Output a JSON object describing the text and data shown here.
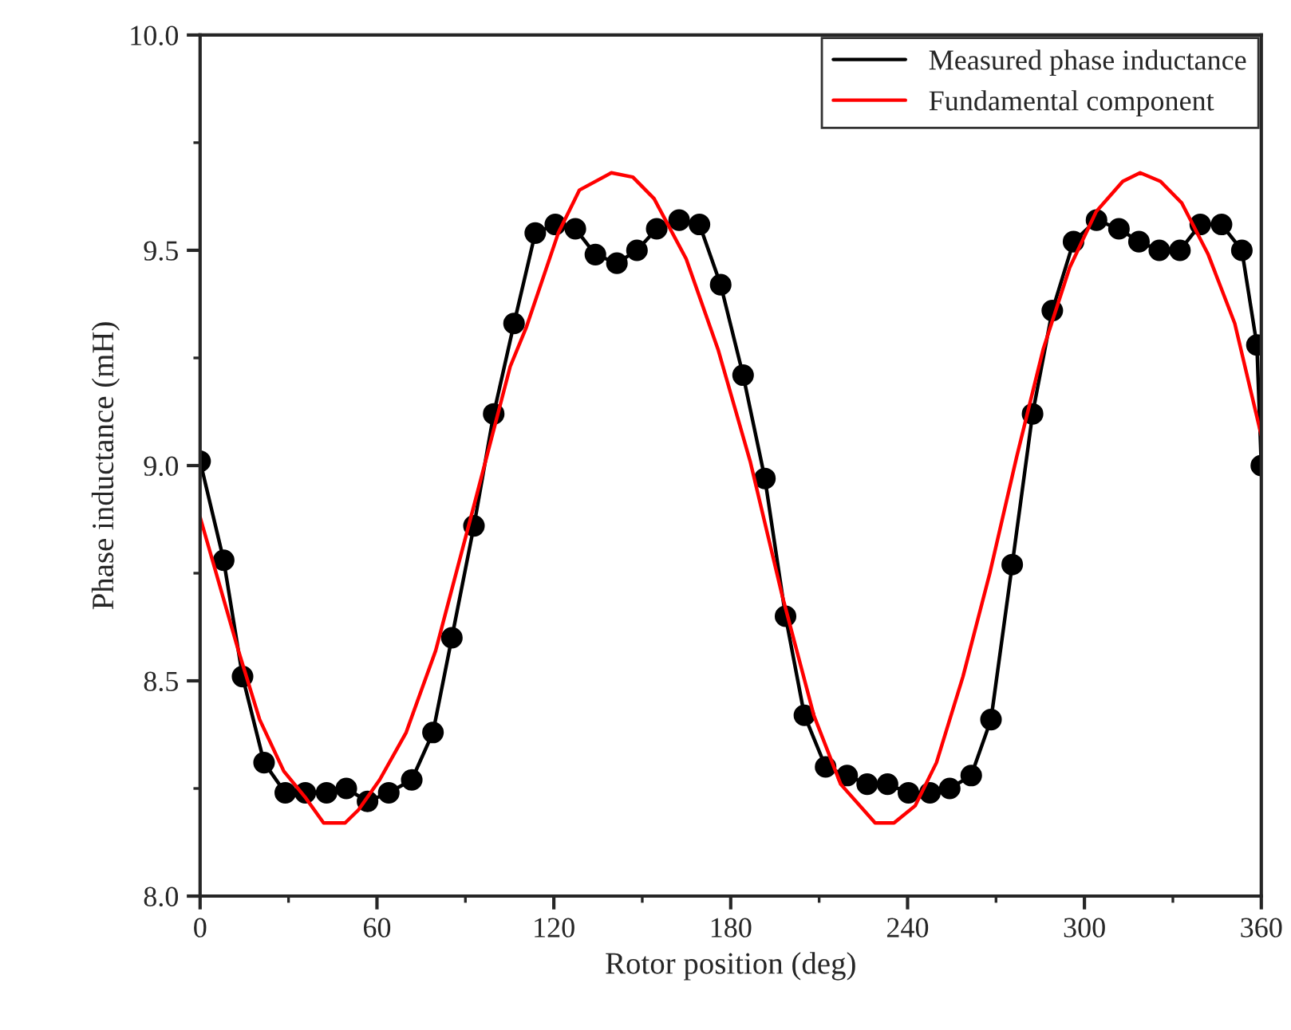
{
  "chart_data": {
    "type": "line",
    "xlabel": "Rotor position (deg)",
    "ylabel": "Phase inductance (mH)",
    "xlim": [
      0,
      360
    ],
    "ylim": [
      8.0,
      10.0
    ],
    "xticks": [
      0,
      60,
      120,
      180,
      240,
      300,
      360
    ],
    "yticks": [
      {
        "value": 8.0,
        "label": "8.0"
      },
      {
        "value": 8.5,
        "label": "8.5"
      },
      {
        "value": 9.0,
        "label": "9.0"
      },
      {
        "value": 9.5,
        "label": "9.5"
      },
      {
        "value": 10.0,
        "label": "10.0"
      }
    ],
    "grid": false,
    "legend": "top right",
    "line_style": "solid",
    "series": [
      {
        "name": "Measured phase inductance",
        "color": "#000000",
        "marker": "circle",
        "x": [
          0,
          8,
          14.4,
          21.7,
          28.9,
          35.7,
          42.9,
          49.6,
          56.8,
          64,
          71.8,
          79,
          85.4,
          92.9,
          99.6,
          106.5,
          113.7,
          120.5,
          127.3,
          134.1,
          141.4,
          148.2,
          154.9,
          162.5,
          169.4,
          176.6,
          184.2,
          191.6,
          198.6,
          205,
          212.2,
          219.5,
          226.3,
          233.2,
          240.3,
          247.6,
          254.3,
          261.6,
          268.3,
          275.5,
          282.4,
          289.1,
          296.3,
          304.1,
          311.7,
          318.5,
          325.4,
          332.4,
          339.3,
          346.5,
          353.4,
          358.5,
          360
        ],
        "values": [
          9.01,
          8.78,
          8.51,
          8.31,
          8.24,
          8.24,
          8.24,
          8.25,
          8.22,
          8.24,
          8.27,
          8.38,
          8.6,
          8.86,
          9.12,
          9.33,
          9.54,
          9.56,
          9.55,
          9.49,
          9.47,
          9.5,
          9.55,
          9.57,
          9.56,
          9.42,
          9.21,
          8.97,
          8.65,
          8.42,
          8.3,
          8.28,
          8.26,
          8.26,
          8.24,
          8.24,
          8.25,
          8.28,
          8.41,
          8.77,
          9.12,
          9.36,
          9.52,
          9.57,
          9.55,
          9.52,
          9.5,
          9.5,
          9.56,
          9.56,
          9.5,
          9.28,
          9.0
        ]
      },
      {
        "name": "Fundamental component",
        "color": "#ff0000",
        "marker": "none",
        "x": [
          0,
          13,
          20.2,
          28.4,
          35.6,
          41.9,
          49.2,
          53.7,
          60.9,
          69.9,
          79.9,
          93.4,
          105.2,
          110.6,
          121.5,
          128.7,
          139.5,
          146.8,
          154,
          164.9,
          175.7,
          186.6,
          197.4,
          208.2,
          217.3,
          229,
          235.4,
          242.6,
          249.8,
          258.8,
          267.9,
          277,
          286,
          295,
          304,
          313,
          318.9,
          325.8,
          333,
          342,
          351,
          360
        ],
        "values": [
          8.88,
          8.57,
          8.41,
          8.29,
          8.23,
          8.17,
          8.17,
          8.2,
          8.27,
          8.38,
          8.57,
          8.92,
          9.23,
          9.32,
          9.54,
          9.64,
          9.68,
          9.67,
          9.62,
          9.48,
          9.27,
          9.01,
          8.7,
          8.42,
          8.26,
          8.17,
          8.17,
          8.21,
          8.31,
          8.51,
          8.75,
          9.02,
          9.27,
          9.46,
          9.59,
          9.66,
          9.68,
          9.66,
          9.61,
          9.49,
          9.33,
          9.07
        ]
      }
    ]
  }
}
